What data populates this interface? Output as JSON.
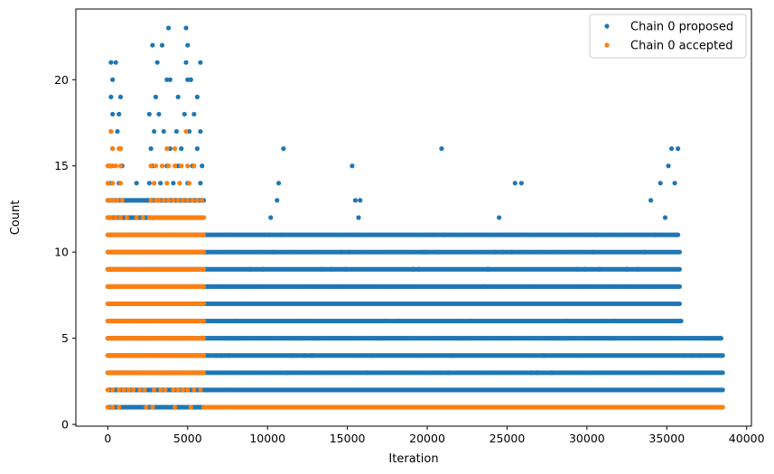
{
  "chart_data": {
    "type": "scatter",
    "xlabel": "Iteration",
    "ylabel": "Count",
    "xlim": [
      -2000,
      40300
    ],
    "ylim": [
      -0.1,
      24.1
    ],
    "xticks": [
      0,
      5000,
      10000,
      15000,
      20000,
      25000,
      30000,
      35000,
      40000
    ],
    "xtick_labels": [
      "0",
      "5000",
      "10000",
      "15000",
      "20000",
      "25000",
      "30000",
      "35000",
      "40000"
    ],
    "yticks": [
      0,
      5,
      10,
      15,
      20
    ],
    "ytick_labels": [
      "0",
      "5",
      "10",
      "15",
      "20"
    ],
    "grid": false,
    "legend_position": "top-right",
    "series": [
      {
        "name": "Chain 0 proposed",
        "color": "#1f77b4",
        "bands": [
          {
            "y": 1,
            "x_start": 0,
            "x_end": 6000
          },
          {
            "y": 2,
            "x_start": 0,
            "x_end": 38500
          },
          {
            "y": 3,
            "x_start": 0,
            "x_end": 38500
          },
          {
            "y": 4,
            "x_start": 0,
            "x_end": 38500
          },
          {
            "y": 5,
            "x_start": 0,
            "x_end": 38400
          },
          {
            "y": 6,
            "x_start": 0,
            "x_end": 35900
          },
          {
            "y": 7,
            "x_start": 0,
            "x_end": 35800
          },
          {
            "y": 8,
            "x_start": 0,
            "x_end": 35800
          },
          {
            "y": 9,
            "x_start": 0,
            "x_end": 35800
          },
          {
            "y": 10,
            "x_start": 0,
            "x_end": 35800
          },
          {
            "y": 11,
            "x_start": 0,
            "x_end": 35700
          },
          {
            "y": 12,
            "x_start": 0,
            "x_end": 6000
          },
          {
            "y": 13,
            "x_start": 0,
            "x_end": 6000
          }
        ],
        "points": [
          [
            200,
            14
          ],
          [
            700,
            14
          ],
          [
            1800,
            14
          ],
          [
            2600,
            14
          ],
          [
            3300,
            14
          ],
          [
            4100,
            14
          ],
          [
            5000,
            14
          ],
          [
            5800,
            14
          ],
          [
            100,
            15
          ],
          [
            900,
            15
          ],
          [
            2800,
            15
          ],
          [
            3700,
            15
          ],
          [
            4400,
            15
          ],
          [
            5300,
            15
          ],
          [
            5900,
            15
          ],
          [
            300,
            16
          ],
          [
            800,
            16
          ],
          [
            2700,
            16
          ],
          [
            3900,
            16
          ],
          [
            4600,
            16
          ],
          [
            5600,
            16
          ],
          [
            200,
            17
          ],
          [
            600,
            17
          ],
          [
            2900,
            17
          ],
          [
            3500,
            17
          ],
          [
            4300,
            17
          ],
          [
            5100,
            17
          ],
          [
            5800,
            17
          ],
          [
            300,
            18
          ],
          [
            700,
            18
          ],
          [
            2600,
            18
          ],
          [
            3200,
            18
          ],
          [
            4800,
            18
          ],
          [
            5400,
            18
          ],
          [
            200,
            19
          ],
          [
            800,
            19
          ],
          [
            3000,
            19
          ],
          [
            4400,
            19
          ],
          [
            5600,
            19
          ],
          [
            300,
            20
          ],
          [
            3700,
            20
          ],
          [
            3900,
            20
          ],
          [
            5000,
            20
          ],
          [
            5200,
            20
          ],
          [
            200,
            21
          ],
          [
            500,
            21
          ],
          [
            3100,
            21
          ],
          [
            4900,
            21
          ],
          [
            5800,
            21
          ],
          [
            2800,
            22
          ],
          [
            3400,
            22
          ],
          [
            5000,
            22
          ],
          [
            3800,
            23
          ],
          [
            4900,
            23
          ],
          [
            6800,
            4
          ],
          [
            7100,
            4
          ],
          [
            7400,
            5
          ],
          [
            7600,
            4
          ],
          [
            7800,
            5
          ],
          [
            8000,
            6
          ],
          [
            8200,
            5
          ],
          [
            8600,
            7
          ],
          [
            8700,
            8
          ],
          [
            8900,
            9
          ],
          [
            9200,
            8
          ],
          [
            9500,
            7
          ],
          [
            9700,
            9
          ],
          [
            9800,
            11
          ],
          [
            10100,
            11
          ],
          [
            10200,
            12
          ],
          [
            10400,
            10
          ],
          [
            10600,
            13
          ],
          [
            10700,
            14
          ],
          [
            10900,
            11
          ],
          [
            11000,
            16
          ],
          [
            11200,
            3
          ],
          [
            11500,
            4
          ],
          [
            11800,
            5
          ],
          [
            12000,
            6
          ],
          [
            12300,
            4
          ],
          [
            12600,
            6
          ],
          [
            12800,
            4
          ],
          [
            13100,
            5
          ],
          [
            13400,
            9
          ],
          [
            13800,
            7
          ],
          [
            14000,
            9
          ],
          [
            14300,
            8
          ],
          [
            14600,
            10
          ],
          [
            14900,
            9
          ],
          [
            15100,
            10
          ],
          [
            15300,
            15
          ],
          [
            15400,
            11
          ],
          [
            15500,
            13
          ],
          [
            15700,
            12
          ],
          [
            15800,
            13
          ],
          [
            16200,
            3
          ],
          [
            16600,
            4
          ],
          [
            17000,
            5
          ],
          [
            17400,
            6
          ],
          [
            17800,
            7
          ],
          [
            18200,
            6
          ],
          [
            18500,
            7
          ],
          [
            18800,
            8
          ],
          [
            19100,
            9
          ],
          [
            19300,
            7
          ],
          [
            19500,
            9
          ],
          [
            19800,
            10
          ],
          [
            20000,
            10
          ],
          [
            20200,
            11
          ],
          [
            20400,
            11
          ],
          [
            20700,
            10
          ],
          [
            20900,
            16
          ],
          [
            21000,
            11
          ],
          [
            21300,
            3
          ],
          [
            21600,
            4
          ],
          [
            21900,
            6
          ],
          [
            22300,
            5
          ],
          [
            22700,
            6
          ],
          [
            23100,
            7
          ],
          [
            23500,
            8
          ],
          [
            23800,
            9
          ],
          [
            24200,
            10
          ],
          [
            24500,
            12
          ],
          [
            24700,
            10
          ],
          [
            25000,
            11
          ],
          [
            25300,
            10
          ],
          [
            25500,
            14
          ],
          [
            25700,
            11
          ],
          [
            25900,
            14
          ],
          [
            26500,
            3
          ],
          [
            26900,
            3
          ],
          [
            27300,
            4
          ],
          [
            27800,
            3
          ],
          [
            28300,
            5
          ],
          [
            28700,
            6
          ],
          [
            29100,
            7
          ],
          [
            29400,
            9
          ],
          [
            29900,
            9
          ],
          [
            30200,
            11
          ],
          [
            30400,
            10
          ],
          [
            30600,
            11
          ],
          [
            30800,
            9
          ],
          [
            31100,
            6
          ],
          [
            31400,
            5
          ],
          [
            31700,
            6
          ],
          [
            32100,
            7
          ],
          [
            32500,
            9
          ],
          [
            32800,
            8
          ],
          [
            33200,
            9
          ],
          [
            33600,
            10
          ],
          [
            34000,
            13
          ],
          [
            34300,
            11
          ],
          [
            34600,
            14
          ],
          [
            34900,
            12
          ],
          [
            35100,
            15
          ],
          [
            35300,
            16
          ],
          [
            35500,
            14
          ],
          [
            35700,
            16
          ],
          [
            36000,
            4
          ],
          [
            36500,
            4
          ],
          [
            37000,
            4
          ],
          [
            37600,
            5
          ],
          [
            38200,
            5
          ],
          [
            38400,
            4
          ]
        ]
      },
      {
        "name": "Chain 0 accepted",
        "color": "#ff7f0e",
        "bands": [
          {
            "y": 1,
            "x_start": 6000,
            "x_end": 38500
          },
          {
            "y": 3,
            "x_start": 0,
            "x_end": 6000
          },
          {
            "y": 4,
            "x_start": 0,
            "x_end": 6000
          },
          {
            "y": 5,
            "x_start": 0,
            "x_end": 6000
          },
          {
            "y": 6,
            "x_start": 0,
            "x_end": 6000
          },
          {
            "y": 7,
            "x_start": 0,
            "x_end": 6000
          },
          {
            "y": 8,
            "x_start": 0,
            "x_end": 6000
          },
          {
            "y": 9,
            "x_start": 0,
            "x_end": 6000
          },
          {
            "y": 10,
            "x_start": 0,
            "x_end": 6000
          },
          {
            "y": 11,
            "x_start": 0,
            "x_end": 6000
          },
          {
            "y": 12,
            "x_start": 2600,
            "x_end": 6000
          }
        ],
        "points": [
          [
            0,
            1
          ],
          [
            300,
            1
          ],
          [
            700,
            1
          ],
          [
            2400,
            1
          ],
          [
            2800,
            1
          ],
          [
            4200,
            1
          ],
          [
            5200,
            1
          ],
          [
            0,
            2
          ],
          [
            300,
            2
          ],
          [
            700,
            2
          ],
          [
            1000,
            2
          ],
          [
            1300,
            2
          ],
          [
            1600,
            2
          ],
          [
            2000,
            2
          ],
          [
            2300,
            2
          ],
          [
            2900,
            2
          ],
          [
            3300,
            2
          ],
          [
            3600,
            2
          ],
          [
            4100,
            2
          ],
          [
            4400,
            2
          ],
          [
            4700,
            2
          ],
          [
            5000,
            2
          ],
          [
            5400,
            2
          ],
          [
            5800,
            2
          ],
          [
            0,
            12
          ],
          [
            200,
            12
          ],
          [
            500,
            12
          ],
          [
            800,
            12
          ],
          [
            1200,
            12
          ],
          [
            1800,
            12
          ],
          [
            2200,
            12
          ],
          [
            0,
            13
          ],
          [
            200,
            13
          ],
          [
            400,
            13
          ],
          [
            600,
            13
          ],
          [
            900,
            13
          ],
          [
            2700,
            13
          ],
          [
            3000,
            13
          ],
          [
            3200,
            13
          ],
          [
            3500,
            13
          ],
          [
            3800,
            13
          ],
          [
            4100,
            13
          ],
          [
            4400,
            13
          ],
          [
            4700,
            13
          ],
          [
            5000,
            13
          ],
          [
            5300,
            13
          ],
          [
            5600,
            13
          ],
          [
            5900,
            13
          ],
          [
            0,
            14
          ],
          [
            300,
            14
          ],
          [
            800,
            14
          ],
          [
            2900,
            14
          ],
          [
            3700,
            14
          ],
          [
            4500,
            14
          ],
          [
            5100,
            14
          ],
          [
            0,
            15
          ],
          [
            100,
            15
          ],
          [
            200,
            15
          ],
          [
            300,
            15
          ],
          [
            500,
            15
          ],
          [
            800,
            15
          ],
          [
            2700,
            15
          ],
          [
            3000,
            15
          ],
          [
            3400,
            15
          ],
          [
            3800,
            15
          ],
          [
            4200,
            15
          ],
          [
            4600,
            15
          ],
          [
            5000,
            15
          ],
          [
            5400,
            15
          ],
          [
            300,
            16
          ],
          [
            700,
            16
          ],
          [
            800,
            16
          ],
          [
            3700,
            16
          ],
          [
            4200,
            16
          ],
          [
            200,
            17
          ],
          [
            4900,
            17
          ]
        ]
      }
    ]
  }
}
